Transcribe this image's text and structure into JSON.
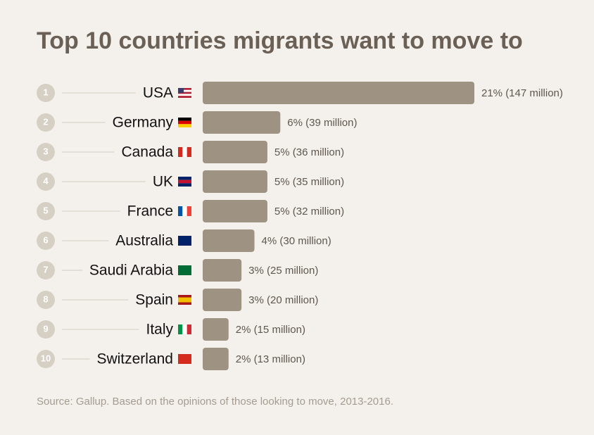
{
  "chart_data": {
    "type": "bar",
    "orientation": "horizontal",
    "title": "Top 10 countries migrants want to move to",
    "ranks": [
      1,
      2,
      3,
      4,
      5,
      6,
      7,
      8,
      9,
      10
    ],
    "categories": [
      "USA",
      "Germany",
      "Canada",
      "UK",
      "France",
      "Australia",
      "Saudi Arabia",
      "Spain",
      "Italy",
      "Switzerland"
    ],
    "values": [
      21,
      6,
      5,
      5,
      5,
      4,
      3,
      3,
      2,
      2
    ],
    "value_labels": [
      "21% (147 million)",
      "6% (39 million)",
      "5% (36 million)",
      "5% (35 million)",
      "5% (32 million)",
      "4% (30 million)",
      "3% (25 million)",
      "3% (20 million)",
      "2% (15 million)",
      "2% (13 million)"
    ],
    "color": "#9e9283",
    "source": "Source: Gallup. Based on the opinions of those looking to move, 2013-2016."
  }
}
